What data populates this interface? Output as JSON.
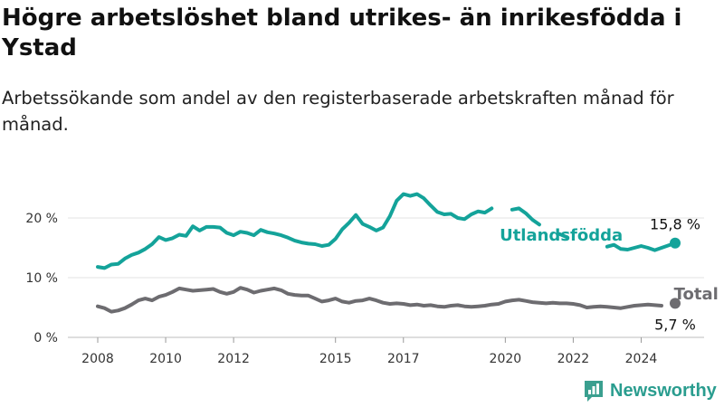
{
  "header": {
    "title": "Högre arbetslöshet bland utrikes- än inrikesfödda i Ystad",
    "subtitle": "Arbetssökande som andel av den registerbaserade arbetskraften månad för månad."
  },
  "brand": {
    "name": "Newsworthy",
    "icon": "bar-chart-logo-icon",
    "color": "#3a9f8f"
  },
  "chart_data": {
    "type": "line",
    "xlim": [
      2008.0,
      2025.0
    ],
    "ylim": [
      0,
      25
    ],
    "y_ticks": [
      {
        "value": 0,
        "label": "0 %"
      },
      {
        "value": 10,
        "label": "10 %"
      },
      {
        "value": 20,
        "label": "20 %"
      }
    ],
    "x_ticks": [
      {
        "value": 2008,
        "label": "2008"
      },
      {
        "value": 2010,
        "label": "2010"
      },
      {
        "value": 2012,
        "label": "2012"
      },
      {
        "value": 2015,
        "label": "2015"
      },
      {
        "value": 2017,
        "label": "2017"
      },
      {
        "value": 2020,
        "label": "2020"
      },
      {
        "value": 2022,
        "label": "2022"
      },
      {
        "value": 2024,
        "label": "2024"
      }
    ],
    "grid": "horizontal",
    "series": [
      {
        "name": "Utlandsfödda",
        "color": "#14a39a",
        "points": [
          [
            2008.0,
            11.8
          ],
          [
            2008.2,
            11.6
          ],
          [
            2008.4,
            12.2
          ],
          [
            2008.6,
            12.3
          ],
          [
            2008.8,
            13.2
          ],
          [
            2009.0,
            13.8
          ],
          [
            2009.2,
            14.2
          ],
          [
            2009.4,
            14.8
          ],
          [
            2009.6,
            15.6
          ],
          [
            2009.8,
            16.8
          ],
          [
            2010.0,
            16.3
          ],
          [
            2010.2,
            16.6
          ],
          [
            2010.4,
            17.2
          ],
          [
            2010.6,
            17.0
          ],
          [
            2010.8,
            18.6
          ],
          [
            2011.0,
            17.9
          ],
          [
            2011.2,
            18.5
          ],
          [
            2011.4,
            18.5
          ],
          [
            2011.6,
            18.4
          ],
          [
            2011.8,
            17.5
          ],
          [
            2012.0,
            17.1
          ],
          [
            2012.2,
            17.7
          ],
          [
            2012.4,
            17.5
          ],
          [
            2012.6,
            17.1
          ],
          [
            2012.8,
            18.0
          ],
          [
            2013.0,
            17.6
          ],
          [
            2013.2,
            17.4
          ],
          [
            2013.4,
            17.1
          ],
          [
            2013.6,
            16.7
          ],
          [
            2013.8,
            16.2
          ],
          [
            2014.0,
            15.9
          ],
          [
            2014.2,
            15.7
          ],
          [
            2014.4,
            15.6
          ],
          [
            2014.6,
            15.3
          ],
          [
            2014.8,
            15.5
          ],
          [
            2015.0,
            16.5
          ],
          [
            2015.2,
            18.1
          ],
          [
            2015.4,
            19.2
          ],
          [
            2015.6,
            20.5
          ],
          [
            2015.8,
            19.0
          ],
          [
            2016.0,
            18.5
          ],
          [
            2016.2,
            17.9
          ],
          [
            2016.4,
            18.4
          ],
          [
            2016.6,
            20.3
          ],
          [
            2016.8,
            22.9
          ],
          [
            2017.0,
            24.0
          ],
          [
            2017.2,
            23.7
          ],
          [
            2017.4,
            24.0
          ],
          [
            2017.6,
            23.3
          ],
          [
            2017.8,
            22.1
          ],
          [
            2018.0,
            21.0
          ],
          [
            2018.2,
            20.6
          ],
          [
            2018.4,
            20.7
          ],
          [
            2018.6,
            20.0
          ],
          [
            2018.8,
            19.8
          ],
          [
            2019.0,
            20.6
          ],
          [
            2019.2,
            21.1
          ],
          [
            2019.4,
            20.9
          ],
          [
            2019.6,
            21.6
          ],
          [
            2019.8,
            22.1
          ],
          [
            2020.0,
            23.0
          ],
          [
            2020.2,
            21.4
          ],
          [
            2020.4,
            21.6
          ],
          [
            2020.6,
            20.8
          ],
          [
            2020.8,
            19.7
          ],
          [
            2021.0,
            18.9
          ],
          [
            2021.2,
            19.5
          ],
          [
            2021.4,
            18.2
          ],
          [
            2021.6,
            17.3
          ],
          [
            2021.8,
            16.8
          ],
          [
            2022.0,
            16.9
          ],
          [
            2022.2,
            16.9
          ],
          [
            2022.4,
            16.3
          ],
          [
            2022.6,
            15.0
          ],
          [
            2022.8,
            15.0
          ],
          [
            2023.0,
            15.2
          ],
          [
            2023.2,
            15.5
          ],
          [
            2023.4,
            14.8
          ],
          [
            2023.6,
            14.7
          ],
          [
            2023.8,
            15.0
          ],
          [
            2024.0,
            15.3
          ],
          [
            2024.2,
            15.0
          ],
          [
            2024.4,
            14.6
          ],
          [
            2024.6,
            15.0
          ],
          [
            2024.8,
            15.4
          ],
          [
            2025.0,
            15.8
          ]
        ],
        "gaps": [
          [
            11.62,
            12.05
          ],
          [
            13.05,
            13.5
          ],
          [
            13.9,
            14.95
          ]
        ],
        "label": "Utlandsfödda",
        "end_label": "15,8 %"
      },
      {
        "name": "Total arbetslöshet",
        "color": "#6d6c70",
        "points": [
          [
            2008.0,
            5.2
          ],
          [
            2008.2,
            4.9
          ],
          [
            2008.4,
            4.3
          ],
          [
            2008.6,
            4.5
          ],
          [
            2008.8,
            4.9
          ],
          [
            2009.0,
            5.5
          ],
          [
            2009.2,
            6.2
          ],
          [
            2009.4,
            6.5
          ],
          [
            2009.6,
            6.2
          ],
          [
            2009.8,
            6.8
          ],
          [
            2010.0,
            7.1
          ],
          [
            2010.2,
            7.6
          ],
          [
            2010.4,
            8.2
          ],
          [
            2010.6,
            8.0
          ],
          [
            2010.8,
            7.8
          ],
          [
            2011.0,
            7.9
          ],
          [
            2011.2,
            8.0
          ],
          [
            2011.4,
            8.1
          ],
          [
            2011.6,
            7.6
          ],
          [
            2011.8,
            7.3
          ],
          [
            2012.0,
            7.6
          ],
          [
            2012.2,
            8.3
          ],
          [
            2012.4,
            8.0
          ],
          [
            2012.6,
            7.5
          ],
          [
            2012.8,
            7.8
          ],
          [
            2013.0,
            8.0
          ],
          [
            2013.2,
            8.2
          ],
          [
            2013.4,
            7.9
          ],
          [
            2013.6,
            7.3
          ],
          [
            2013.8,
            7.1
          ],
          [
            2014.0,
            7.0
          ],
          [
            2014.2,
            7.0
          ],
          [
            2014.4,
            6.5
          ],
          [
            2014.6,
            6.0
          ],
          [
            2014.8,
            6.2
          ],
          [
            2015.0,
            6.5
          ],
          [
            2015.2,
            6.0
          ],
          [
            2015.4,
            5.8
          ],
          [
            2015.6,
            6.1
          ],
          [
            2015.8,
            6.2
          ],
          [
            2016.0,
            6.5
          ],
          [
            2016.2,
            6.2
          ],
          [
            2016.4,
            5.8
          ],
          [
            2016.6,
            5.6
          ],
          [
            2016.8,
            5.7
          ],
          [
            2017.0,
            5.6
          ],
          [
            2017.2,
            5.4
          ],
          [
            2017.4,
            5.5
          ],
          [
            2017.6,
            5.3
          ],
          [
            2017.8,
            5.4
          ],
          [
            2018.0,
            5.2
          ],
          [
            2018.2,
            5.1
          ],
          [
            2018.4,
            5.3
          ],
          [
            2018.6,
            5.4
          ],
          [
            2018.8,
            5.2
          ],
          [
            2019.0,
            5.1
          ],
          [
            2019.2,
            5.2
          ],
          [
            2019.4,
            5.3
          ],
          [
            2019.6,
            5.5
          ],
          [
            2019.8,
            5.6
          ],
          [
            2020.0,
            6.0
          ],
          [
            2020.2,
            6.2
          ],
          [
            2020.4,
            6.3
          ],
          [
            2020.6,
            6.1
          ],
          [
            2020.8,
            5.9
          ],
          [
            2021.0,
            5.8
          ],
          [
            2021.2,
            5.7
          ],
          [
            2021.4,
            5.8
          ],
          [
            2021.6,
            5.7
          ],
          [
            2021.8,
            5.7
          ],
          [
            2022.0,
            5.6
          ],
          [
            2022.2,
            5.4
          ],
          [
            2022.4,
            5.0
          ],
          [
            2022.6,
            5.1
          ],
          [
            2022.8,
            5.2
          ],
          [
            2023.0,
            5.1
          ],
          [
            2023.2,
            5.0
          ],
          [
            2023.4,
            4.9
          ],
          [
            2023.6,
            5.1
          ],
          [
            2023.8,
            5.3
          ],
          [
            2024.0,
            5.4
          ],
          [
            2024.2,
            5.5
          ],
          [
            2024.4,
            5.4
          ],
          [
            2024.6,
            5.3
          ],
          [
            2024.8,
            5.4
          ],
          [
            2025.0,
            5.7
          ]
        ],
        "gaps": [
          [
            16.75,
            21.95
          ]
        ],
        "label": "Total arbetslöshet",
        "end_label": "5,7 %"
      }
    ]
  }
}
